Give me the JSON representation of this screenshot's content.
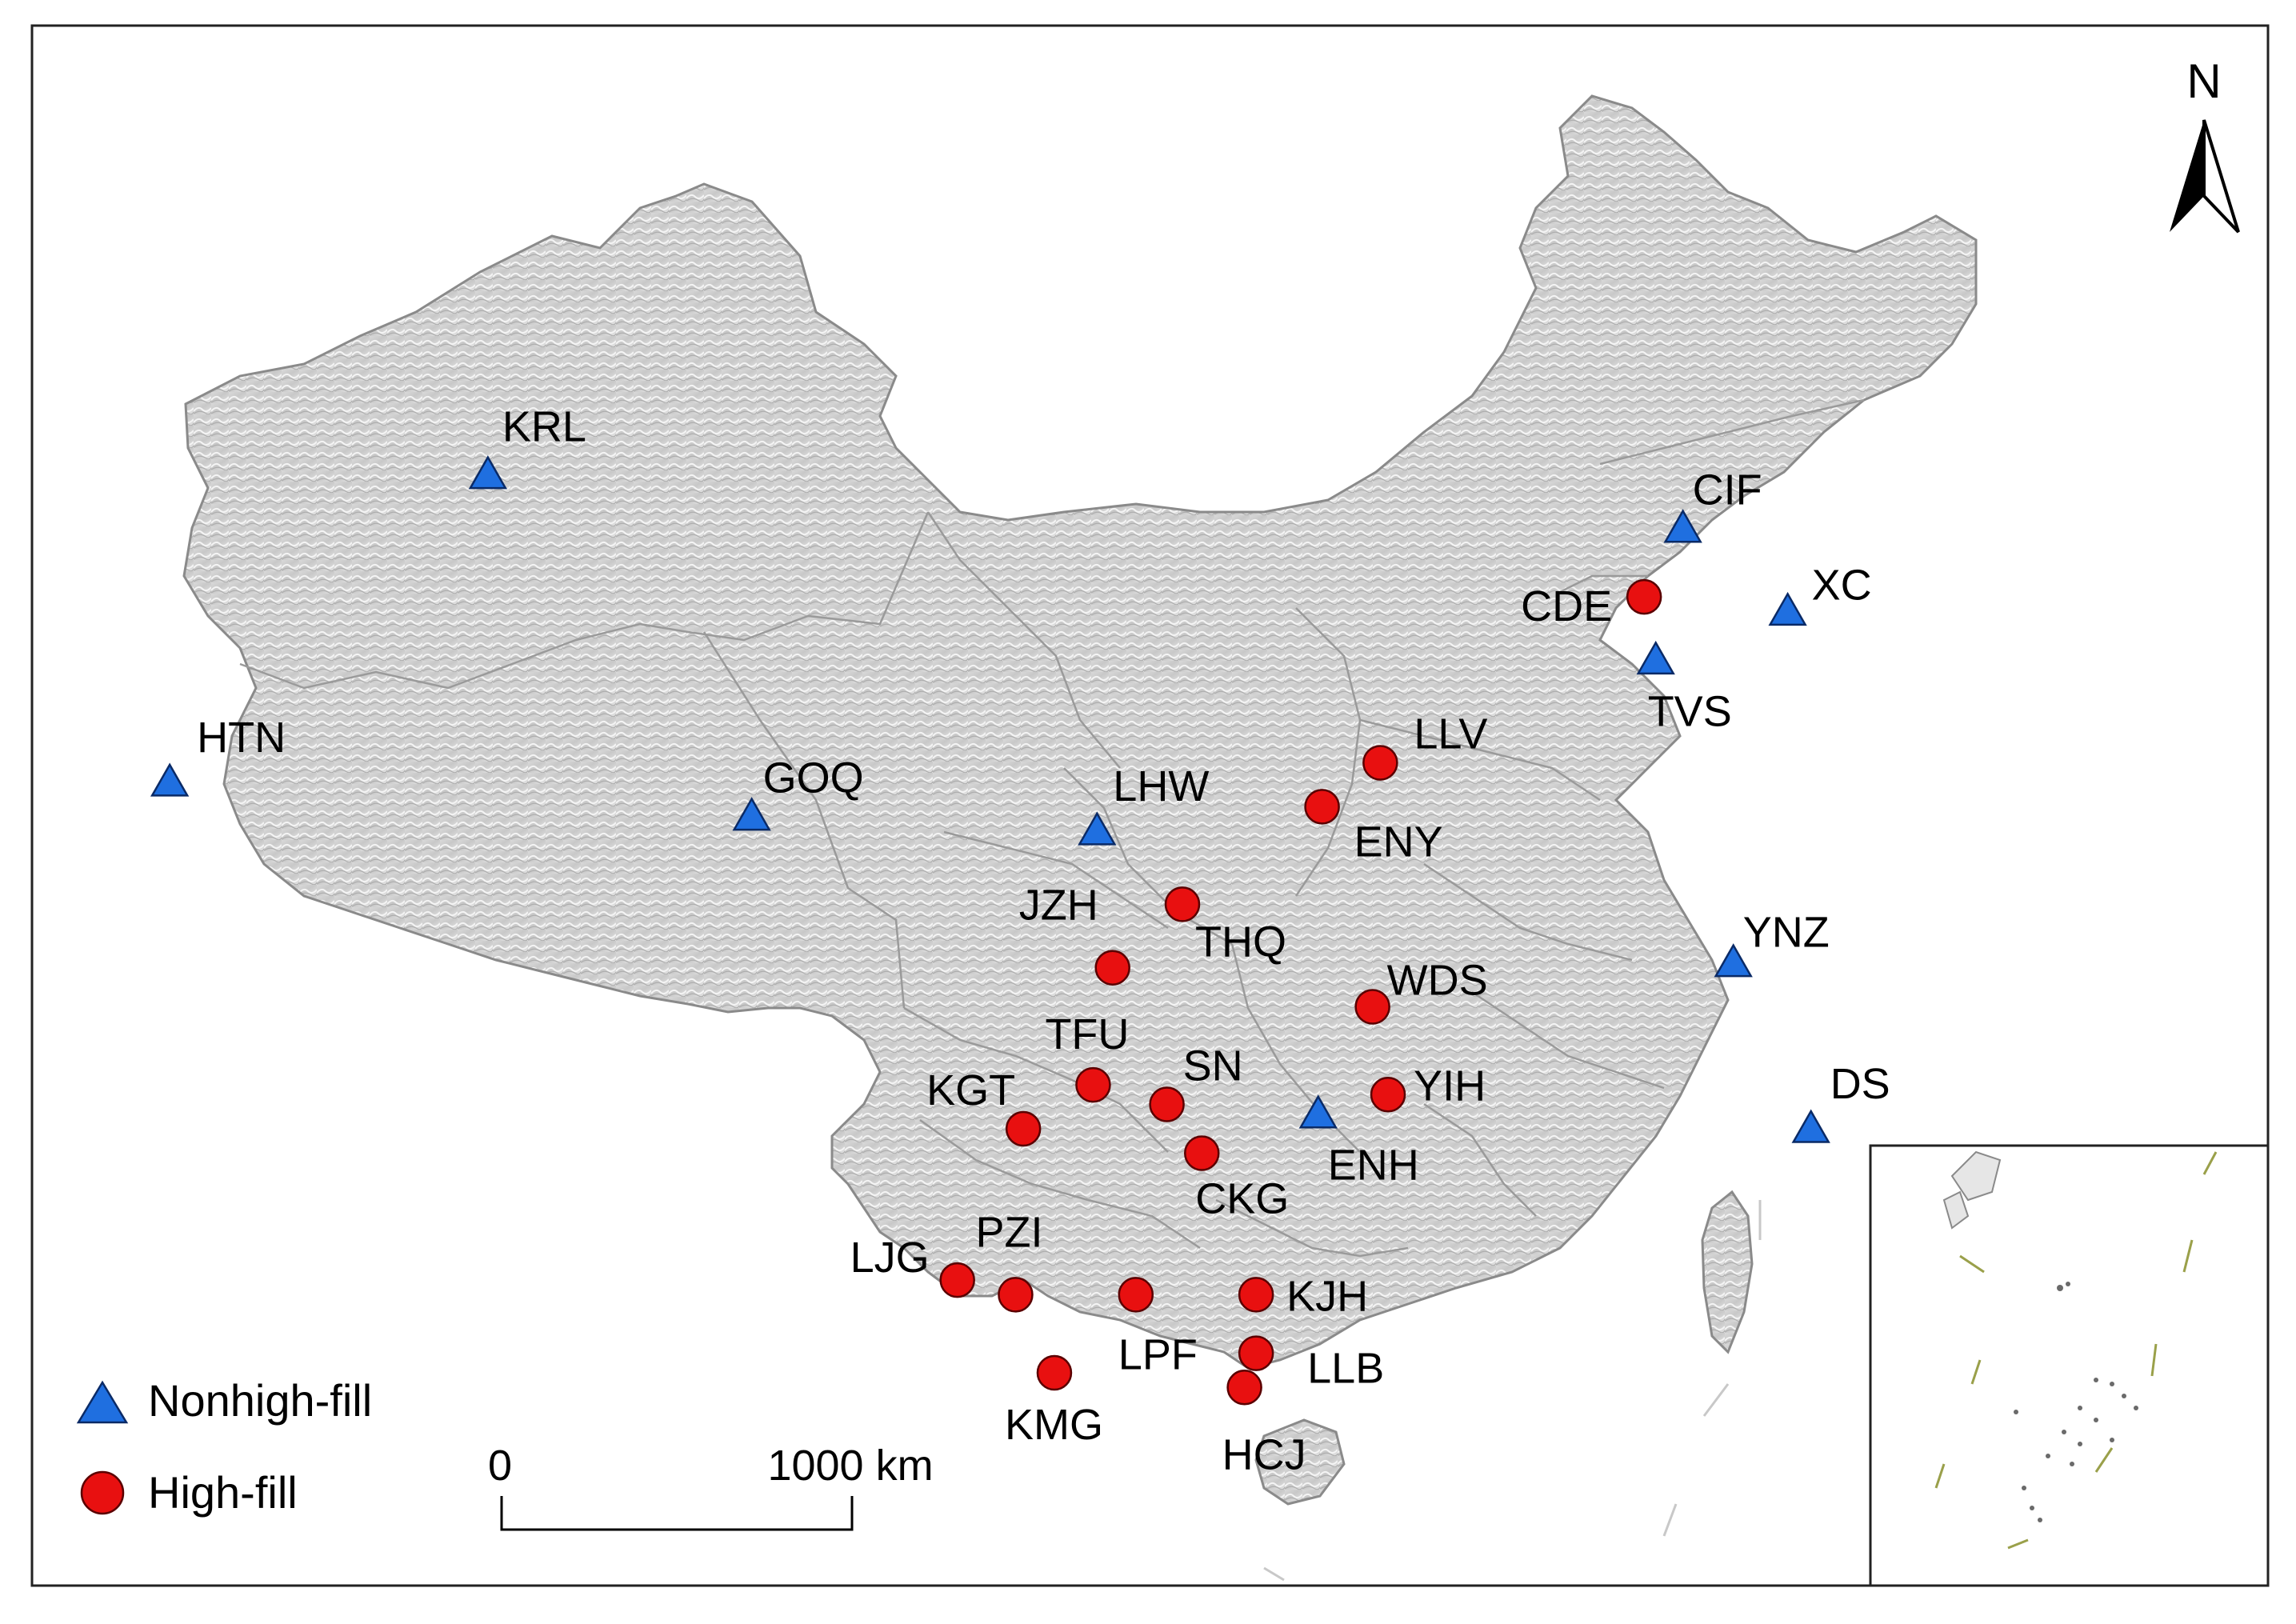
{
  "north_arrow": {
    "label": "N"
  },
  "legend": [
    {
      "symbol": "triangle",
      "label": "Nonhigh-fill"
    },
    {
      "symbol": "circle",
      "label": "High-fill"
    }
  ],
  "scale_bar": {
    "start_label": "0",
    "end_label": "1000 km"
  },
  "colors": {
    "nonhigh_fill": "#1f6fe0",
    "high_fill": "#e81010",
    "land": "#e2e2e2",
    "frame": "#222222",
    "island_dashes": "#9aa04a"
  },
  "sites": [
    {
      "code": "KRL",
      "type": "nonhigh",
      "lon": 88.1,
      "lat": 43.4
    },
    {
      "code": "HTN",
      "type": "nonhigh",
      "lon": 79.9,
      "lat": 37.1
    },
    {
      "code": "GOQ",
      "type": "nonhigh",
      "lon": 94.9,
      "lat": 36.4
    },
    {
      "code": "LHW",
      "type": "nonhigh",
      "lon": 103.8,
      "lat": 36.1
    },
    {
      "code": "CIF",
      "type": "nonhigh",
      "lon": 118.9,
      "lat": 42.3
    },
    {
      "code": "XC",
      "type": "nonhigh",
      "lon": 121.6,
      "lat": 40.6
    },
    {
      "code": "TVS",
      "type": "nonhigh",
      "lon": 118.2,
      "lat": 39.6
    },
    {
      "code": "YNZ",
      "type": "nonhigh",
      "lon": 120.2,
      "lat": 33.4
    },
    {
      "code": "DS",
      "type": "nonhigh",
      "lon": 122.2,
      "lat": 30.0
    },
    {
      "code": "ENH",
      "type": "nonhigh",
      "lon": 109.5,
      "lat": 30.3
    },
    {
      "code": "CDE",
      "type": "high",
      "lon": 117.9,
      "lat": 40.9
    },
    {
      "code": "LLV",
      "type": "high",
      "lon": 111.1,
      "lat": 37.5
    },
    {
      "code": "ENY",
      "type": "high",
      "lon": 109.6,
      "lat": 36.6
    },
    {
      "code": "THQ",
      "type": "high",
      "lon": 106.0,
      "lat": 34.6
    },
    {
      "code": "JZH",
      "type": "high",
      "lon": 104.2,
      "lat": 33.3
    },
    {
      "code": "WDS",
      "type": "high",
      "lon": 110.9,
      "lat": 32.5
    },
    {
      "code": "KGT",
      "type": "high",
      "lon": 101.9,
      "lat": 30.0
    },
    {
      "code": "TFU",
      "type": "high",
      "lon": 103.7,
      "lat": 30.9
    },
    {
      "code": "SN",
      "type": "high",
      "lon": 105.6,
      "lat": 30.5
    },
    {
      "code": "CKG",
      "type": "high",
      "lon": 106.5,
      "lat": 29.5
    },
    {
      "code": "YIH",
      "type": "high",
      "lon": 111.3,
      "lat": 30.7
    },
    {
      "code": "LJG",
      "type": "high",
      "lon": 100.2,
      "lat": 26.9
    },
    {
      "code": "PZI",
      "type": "high",
      "lon": 101.7,
      "lat": 26.6
    },
    {
      "code": "LPF",
      "type": "high",
      "lon": 104.8,
      "lat": 26.6
    },
    {
      "code": "KJH",
      "type": "high",
      "lon": 107.9,
      "lat": 26.6
    },
    {
      "code": "KMG",
      "type": "high",
      "lon": 102.7,
      "lat": 25.0
    },
    {
      "code": "LLB",
      "type": "high",
      "lon": 107.9,
      "lat": 25.4
    },
    {
      "code": "HCJ",
      "type": "high",
      "lon": 107.6,
      "lat": 24.7
    }
  ]
}
